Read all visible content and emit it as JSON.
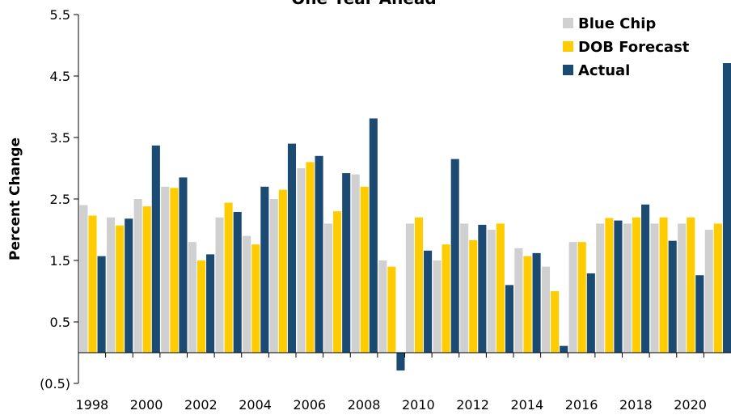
{
  "chart_data": {
    "type": "bar",
    "title": "One Year Ahead",
    "y_label": "Percent Change",
    "categories": [
      "1998",
      null,
      "2000",
      null,
      "2002",
      null,
      "2004",
      null,
      "2006",
      null,
      "2008",
      null,
      "2010",
      null,
      "2012",
      null,
      "2014",
      null,
      "2016",
      null,
      "2018",
      null,
      "2020",
      null
    ],
    "series": [
      {
        "name": "Blue Chip",
        "color": "#d0d0d0",
        "values": [
          2.4,
          2.2,
          2.5,
          2.7,
          1.8,
          2.2,
          1.9,
          2.5,
          3.0,
          2.1,
          2.9,
          1.5,
          2.1,
          1.5,
          2.1,
          2.0,
          1.7,
          1.4,
          1.8,
          2.1,
          2.1,
          2.1,
          2.1,
          2.0
        ]
      },
      {
        "name": "DOB Forecast",
        "color": "#ffcc00",
        "values": [
          2.23,
          2.07,
          2.38,
          2.68,
          1.5,
          2.44,
          1.76,
          2.65,
          3.1,
          2.3,
          2.7,
          1.4,
          2.2,
          1.76,
          1.83,
          2.1,
          1.57,
          1.0,
          1.8,
          2.19,
          2.2,
          2.2,
          2.2,
          2.1
        ]
      },
      {
        "name": "Actual",
        "color": "#1b4a72",
        "values": [
          1.57,
          2.18,
          3.37,
          2.85,
          1.6,
          2.29,
          2.7,
          3.4,
          3.2,
          2.92,
          3.81,
          -0.29,
          1.66,
          3.15,
          2.08,
          1.1,
          1.62,
          0.11,
          1.29,
          2.15,
          2.41,
          1.82,
          1.26,
          4.71
        ]
      }
    ],
    "ylim": [
      -0.5,
      5.5
    ],
    "yticks": [
      {
        "value": -0.5,
        "label": "(0.5)"
      },
      0.5,
      1.5,
      2.5,
      3.5,
      4.5,
      5.5
    ],
    "legend": "top-right"
  }
}
